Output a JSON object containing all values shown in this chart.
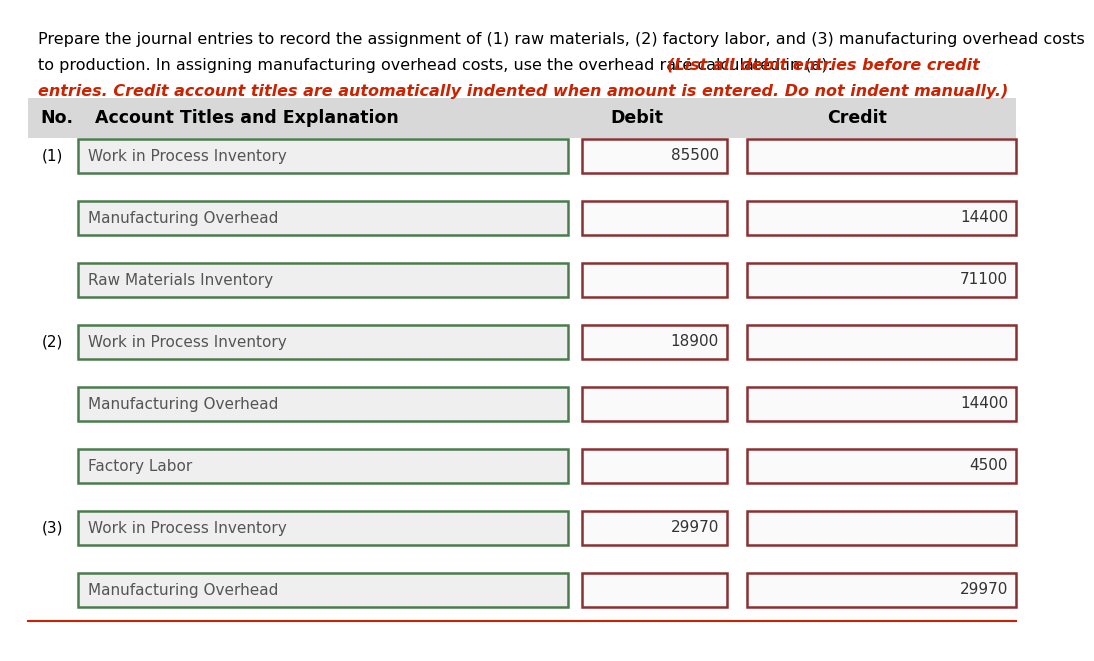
{
  "line1": "Prepare the journal entries to record the assignment of (1) raw materials, (2) factory labor, and (3) manufacturing overhead costs",
  "line2_black": "to production. In assigning manufacturing overhead costs, use the overhead rate calculated in (a). ",
  "line2_red": "(List all debit entries before credit",
  "line3_red": "entries. Credit account titles are automatically indented when amount is entered. Do not indent manually.)",
  "header_bg": "#d8d8d8",
  "header_col1": "No.",
  "header_col2": "Account Titles and Explanation",
  "header_col3": "Debit",
  "header_col4": "Credit",
  "bg_color": "#ffffff",
  "acct_box_color": "#4a7c4e",
  "val_box_color": "#8b3030",
  "rows": [
    {
      "no": "(1)",
      "account": "Work in Process Inventory",
      "debit": "85500",
      "credit": ""
    },
    {
      "no": "",
      "account": "Manufacturing Overhead",
      "debit": "",
      "credit": "14400"
    },
    {
      "no": "",
      "account": "Raw Materials Inventory",
      "debit": "",
      "credit": "71100"
    },
    {
      "no": "(2)",
      "account": "Work in Process Inventory",
      "debit": "18900",
      "credit": ""
    },
    {
      "no": "",
      "account": "Manufacturing Overhead",
      "debit": "",
      "credit": "14400"
    },
    {
      "no": "",
      "account": "Factory Labor",
      "debit": "",
      "credit": "4500"
    },
    {
      "no": "(3)",
      "account": "Work in Process Inventory",
      "debit": "29970",
      "credit": ""
    },
    {
      "no": "",
      "account": "Manufacturing Overhead",
      "debit": "",
      "credit": "29970"
    }
  ],
  "title_fontsize": 11.5,
  "header_fontsize": 12.5,
  "row_fontsize": 11.0
}
